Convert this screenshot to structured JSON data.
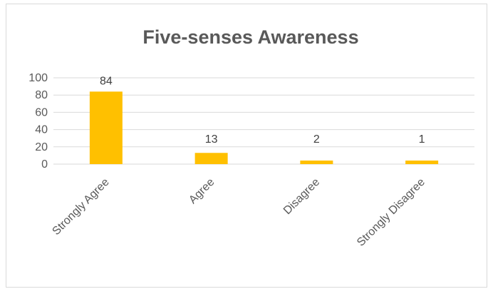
{
  "chart_data": {
    "type": "bar",
    "title": "Five-senses Awareness",
    "xlabel": "",
    "ylabel": "",
    "categories": [
      "Strongly Agree",
      "Agree",
      "Disagree",
      "Strongly Disagree"
    ],
    "values": [
      84,
      13,
      2,
      1
    ],
    "data_labels": [
      "84",
      "13",
      "2",
      "1"
    ],
    "ylim": [
      0,
      100
    ],
    "yticks": [
      0,
      20,
      40,
      60,
      80,
      100
    ],
    "grid": true,
    "legend": "none",
    "bar_color": "#FFC000"
  }
}
